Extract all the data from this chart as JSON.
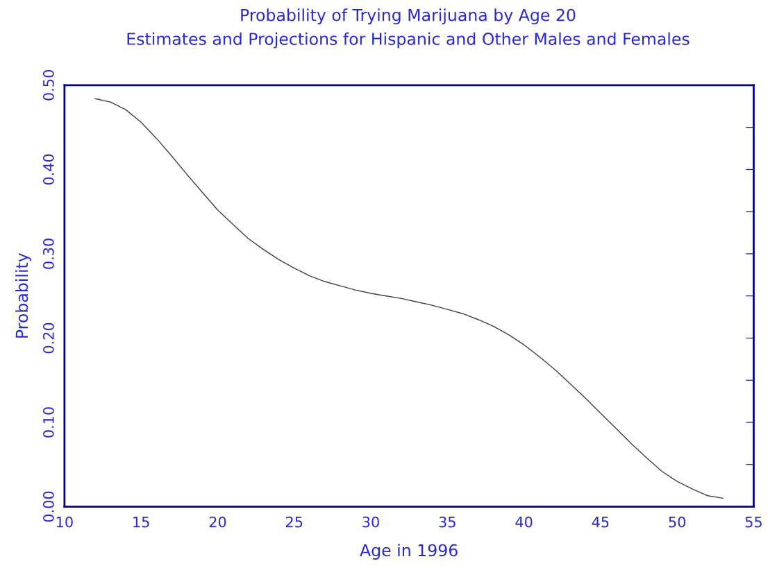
{
  "chart_data": {
    "type": "line",
    "title": "Probability of Trying Marijuana by Age 20",
    "subtitle": "Estimates and Projections for Hispanic and Other Males and Females",
    "xlabel": "Age in 1996",
    "ylabel": "Probability",
    "x": [
      12,
      13,
      14,
      15,
      16,
      17,
      18,
      19,
      20,
      21,
      22,
      23,
      24,
      25,
      26,
      27,
      28,
      29,
      30,
      31,
      32,
      33,
      34,
      35,
      36,
      37,
      38,
      39,
      40,
      41,
      42,
      43,
      44,
      45,
      46,
      47,
      48,
      49,
      50,
      51,
      52,
      53
    ],
    "series": [
      {
        "color": "#404040",
        "values": [
          0.484,
          0.48,
          0.471,
          0.456,
          0.437,
          0.416,
          0.394,
          0.373,
          0.352,
          0.335,
          0.318,
          0.305,
          0.293,
          0.283,
          0.274,
          0.267,
          0.262,
          0.257,
          0.253,
          0.25,
          0.247,
          0.243,
          0.239,
          0.234,
          0.229,
          0.222,
          0.214,
          0.204,
          0.192,
          0.178,
          0.163,
          0.146,
          0.129,
          0.111,
          0.093,
          0.075,
          0.058,
          0.042,
          0.03,
          0.021,
          0.013,
          0.01
        ]
      }
    ],
    "xlim": [
      10,
      55
    ],
    "xticks": [
      10,
      15,
      20,
      25,
      30,
      35,
      40,
      45,
      50,
      55
    ],
    "ylim": [
      0,
      0.5
    ],
    "yticks": [
      {
        "value": 0,
        "label": "0.00"
      },
      {
        "value": 0.05,
        "label": null
      },
      {
        "value": 0.1,
        "label": "0.10"
      },
      {
        "value": 0.15,
        "label": null
      },
      {
        "value": 0.2,
        "label": "0.20"
      },
      {
        "value": 0.25,
        "label": null
      },
      {
        "value": 0.3,
        "label": "0.30"
      },
      {
        "value": 0.35,
        "label": null
      },
      {
        "value": 0.4,
        "label": "0.40"
      },
      {
        "value": 0.45,
        "label": null
      },
      {
        "value": 0.5,
        "label": "0.50"
      }
    ],
    "grid": false,
    "legend": false,
    "marker": "none",
    "line_style": "solid"
  }
}
